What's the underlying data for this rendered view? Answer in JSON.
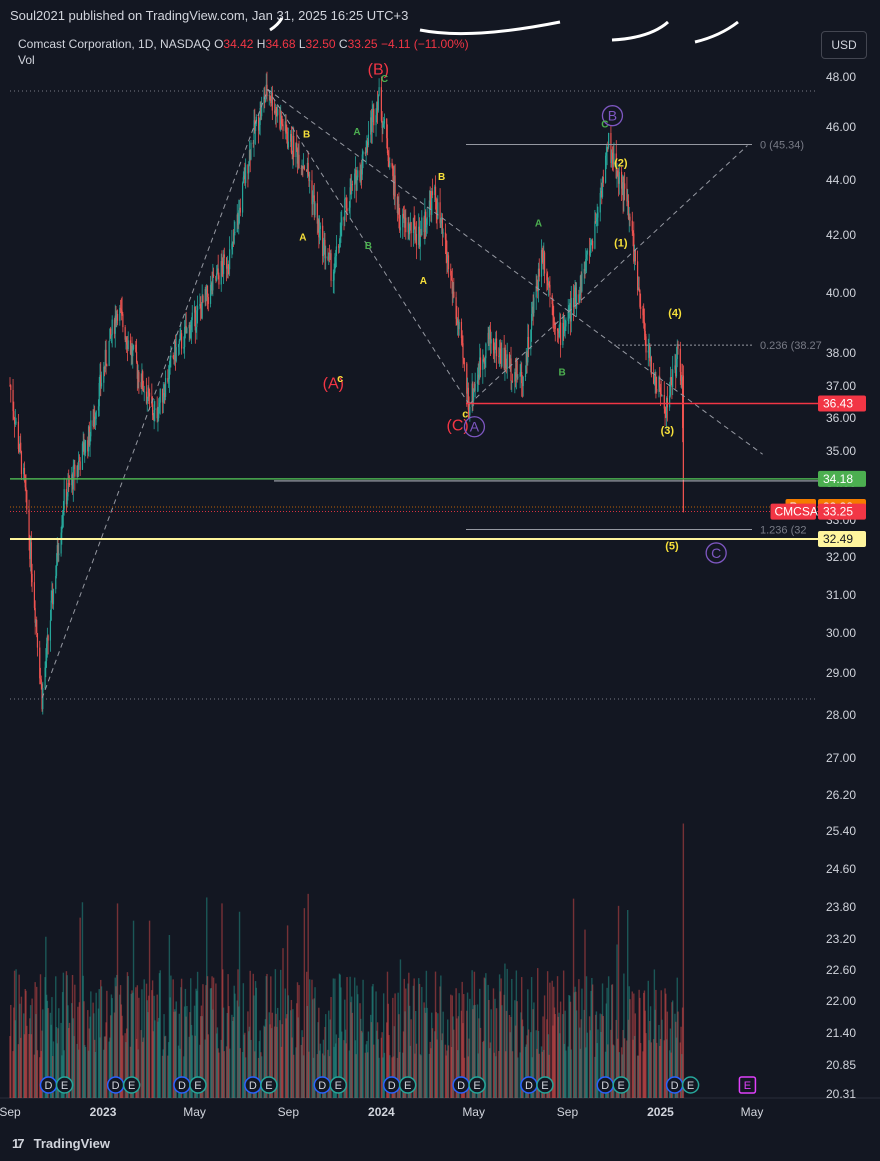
{
  "header": {
    "publisher": "Soul2021 published on TradingView.com, Jan 31, 2025 16:25 UTC+3"
  },
  "legend": {
    "symbol": "Comcast Corporation, 1D, NASDAQ",
    "o_label": "O",
    "o": "34.42",
    "h_label": "H",
    "h": "34.68",
    "l_label": "L",
    "l": "32.50",
    "c_label": "C",
    "c": "33.25",
    "change": "−4.11 (−11.00%)",
    "vol_label": "Vol"
  },
  "currency_button": "USD",
  "footer": {
    "brand": "TradingView"
  },
  "colors": {
    "background": "#131722",
    "up": "#26a69a",
    "down": "#ef5350",
    "wave_red": "#f23645",
    "wave_purple": "#7e57c2",
    "wave_yellow": "#f7e03a",
    "wave_green": "#4caf50",
    "level_red": "#f23645",
    "level_green": "#4caf50",
    "level_yellow": "#fff59d",
    "pre": "#f57c00"
  },
  "chart_data": {
    "type": "candlestick",
    "symbol": "CMCSA",
    "yscale": "log",
    "ylim": [
      20.31,
      49.0
    ],
    "y_ticks": [
      "48.00",
      "46.00",
      "44.00",
      "42.00",
      "40.00",
      "38.00",
      "37.00",
      "36.00",
      "35.00",
      "34.00",
      "33.00",
      "32.00",
      "31.00",
      "30.00",
      "29.00",
      "28.00",
      "27.00",
      "26.20",
      "25.40",
      "24.60",
      "23.80",
      "23.20",
      "22.60",
      "22.00",
      "21.40",
      "20.85",
      "20.31"
    ],
    "x_ticks": [
      {
        "label": "Sep",
        "date": "2022-09-01"
      },
      {
        "label": "2023",
        "date": "2023-01-01"
      },
      {
        "label": "May",
        "date": "2023-05-01"
      },
      {
        "label": "Sep",
        "date": "2023-09-01"
      },
      {
        "label": "2024",
        "date": "2024-01-01"
      },
      {
        "label": "May",
        "date": "2024-05-01"
      },
      {
        "label": "Sep",
        "date": "2024-09-01"
      },
      {
        "label": "2025",
        "date": "2025-01-01"
      },
      {
        "label": "May",
        "date": "2025-05-01"
      }
    ],
    "price_path": [
      {
        "date": "2022-09-01",
        "price": 37.0
      },
      {
        "date": "2022-09-20",
        "price": 34.0
      },
      {
        "date": "2022-10-13",
        "price": 28.4
      },
      {
        "date": "2022-11-10",
        "price": 33.5
      },
      {
        "date": "2022-12-15",
        "price": 35.5
      },
      {
        "date": "2023-01-20",
        "price": 39.5
      },
      {
        "date": "2023-02-15",
        "price": 37.5
      },
      {
        "date": "2023-03-10",
        "price": 36.0
      },
      {
        "date": "2023-04-05",
        "price": 38.0
      },
      {
        "date": "2023-05-10",
        "price": 39.5
      },
      {
        "date": "2023-06-20",
        "price": 41.5
      },
      {
        "date": "2023-07-15",
        "price": 45.5
      },
      {
        "date": "2023-08-05",
        "price": 47.5
      },
      {
        "date": "2023-09-01",
        "price": 45.5
      },
      {
        "date": "2023-09-25",
        "price": 44.5
      },
      {
        "date": "2023-10-12",
        "price": 42.0
      },
      {
        "date": "2023-10-30",
        "price": 40.6
      },
      {
        "date": "2023-11-15",
        "price": 43.0
      },
      {
        "date": "2023-12-05",
        "price": 44.5
      },
      {
        "date": "2023-12-28",
        "price": 47.3
      },
      {
        "date": "2024-01-25",
        "price": 42.5
      },
      {
        "date": "2024-02-20",
        "price": 42.0
      },
      {
        "date": "2024-03-10",
        "price": 43.5
      },
      {
        "date": "2024-04-01",
        "price": 40.5
      },
      {
        "date": "2024-04-25",
        "price": 36.4
      },
      {
        "date": "2024-05-20",
        "price": 38.5
      },
      {
        "date": "2024-06-20",
        "price": 37.5
      },
      {
        "date": "2024-07-05",
        "price": 37.2
      },
      {
        "date": "2024-07-30",
        "price": 41.5
      },
      {
        "date": "2024-08-20",
        "price": 38.5
      },
      {
        "date": "2024-09-15",
        "price": 40.0
      },
      {
        "date": "2024-10-05",
        "price": 42.0
      },
      {
        "date": "2024-10-25",
        "price": 45.3
      },
      {
        "date": "2024-11-15",
        "price": 43.5
      },
      {
        "date": "2024-11-25",
        "price": 42.0
      },
      {
        "date": "2024-12-05",
        "price": 39.5
      },
      {
        "date": "2024-12-20",
        "price": 37.5
      },
      {
        "date": "2025-01-08",
        "price": 36.3
      },
      {
        "date": "2025-01-24",
        "price": 38.0
      },
      {
        "date": "2025-01-29",
        "price": 37.36
      },
      {
        "date": "2025-01-31",
        "price": 33.25
      }
    ],
    "wave_labels": [
      {
        "text": "(B)",
        "date": "2023-12-28",
        "price": 48.1,
        "color": "wave_red",
        "size": 16
      },
      {
        "text": "C",
        "date": "2024-01-05",
        "price": 47.8,
        "color": "wave_green",
        "size": 10
      },
      {
        "text": "(A)",
        "date": "2023-10-30",
        "price": 36.9,
        "color": "wave_red",
        "size": 16
      },
      {
        "text": "c",
        "date": "2023-11-08",
        "price": 37.1,
        "color": "wave_yellow",
        "size": 11
      },
      {
        "text": "(C)",
        "date": "2024-04-10",
        "price": 35.6,
        "color": "wave_red",
        "size": 16
      },
      {
        "text": "c",
        "date": "2024-04-20",
        "price": 36.0,
        "color": "wave_yellow",
        "size": 11
      },
      {
        "text": "A",
        "date": "2024-05-02",
        "price": 35.6,
        "color": "wave_purple",
        "size": 14,
        "circle": true
      },
      {
        "text": "B",
        "date": "2024-10-30",
        "price": 46.3,
        "color": "wave_purple",
        "size": 14,
        "circle": true
      },
      {
        "text": "C",
        "date": "2024-10-20",
        "price": 46.0,
        "color": "wave_green",
        "size": 10
      },
      {
        "text": "C",
        "date": "2025-03-15",
        "price": 32.0,
        "color": "wave_purple",
        "size": 14,
        "circle": true
      },
      {
        "text": "B",
        "date": "2023-09-25",
        "price": 45.6,
        "color": "wave_yellow",
        "size": 10
      },
      {
        "text": "A",
        "date": "2023-09-20",
        "price": 41.8,
        "color": "wave_yellow",
        "size": 10
      },
      {
        "text": "A",
        "date": "2023-11-30",
        "price": 45.7,
        "color": "wave_green",
        "size": 10
      },
      {
        "text": "B",
        "date": "2023-12-15",
        "price": 41.5,
        "color": "wave_green",
        "size": 10
      },
      {
        "text": "B",
        "date": "2024-03-20",
        "price": 44.0,
        "color": "wave_yellow",
        "size": 10
      },
      {
        "text": "A",
        "date": "2024-02-25",
        "price": 40.3,
        "color": "wave_yellow",
        "size": 10
      },
      {
        "text": "A",
        "date": "2024-07-25",
        "price": 42.3,
        "color": "wave_green",
        "size": 10
      },
      {
        "text": "B",
        "date": "2024-08-25",
        "price": 37.3,
        "color": "wave_green",
        "size": 10
      },
      {
        "text": "(2)",
        "date": "2024-11-10",
        "price": 44.5,
        "color": "wave_yellow",
        "size": 11
      },
      {
        "text": "(1)",
        "date": "2024-11-10",
        "price": 41.6,
        "color": "wave_yellow",
        "size": 11
      },
      {
        "text": "(4)",
        "date": "2025-01-20",
        "price": 39.2,
        "color": "wave_yellow",
        "size": 11
      },
      {
        "text": "(3)",
        "date": "2025-01-10",
        "price": 35.5,
        "color": "wave_yellow",
        "size": 11
      },
      {
        "text": "(5)",
        "date": "2025-01-16",
        "price": 32.2,
        "color": "wave_yellow",
        "size": 11
      }
    ],
    "price_labels": [
      {
        "label": "",
        "price": "36.43",
        "color": "level_red"
      },
      {
        "label": "",
        "price": "34.18",
        "color": "level_green"
      },
      {
        "label": "Pre",
        "price": "33.38",
        "color": "pre"
      },
      {
        "label": "CMCSA",
        "price": "33.25",
        "color": "level_red"
      },
      {
        "label": "",
        "price": "32.49",
        "color": "level_yellow"
      }
    ],
    "fib_levels": [
      {
        "text": "0 (45.34)",
        "price": 45.34
      },
      {
        "text": "0.236 (38.27",
        "price": 38.27
      },
      {
        "text": "1.236 (32",
        "price": 32.75
      }
    ],
    "annotations": []
  }
}
